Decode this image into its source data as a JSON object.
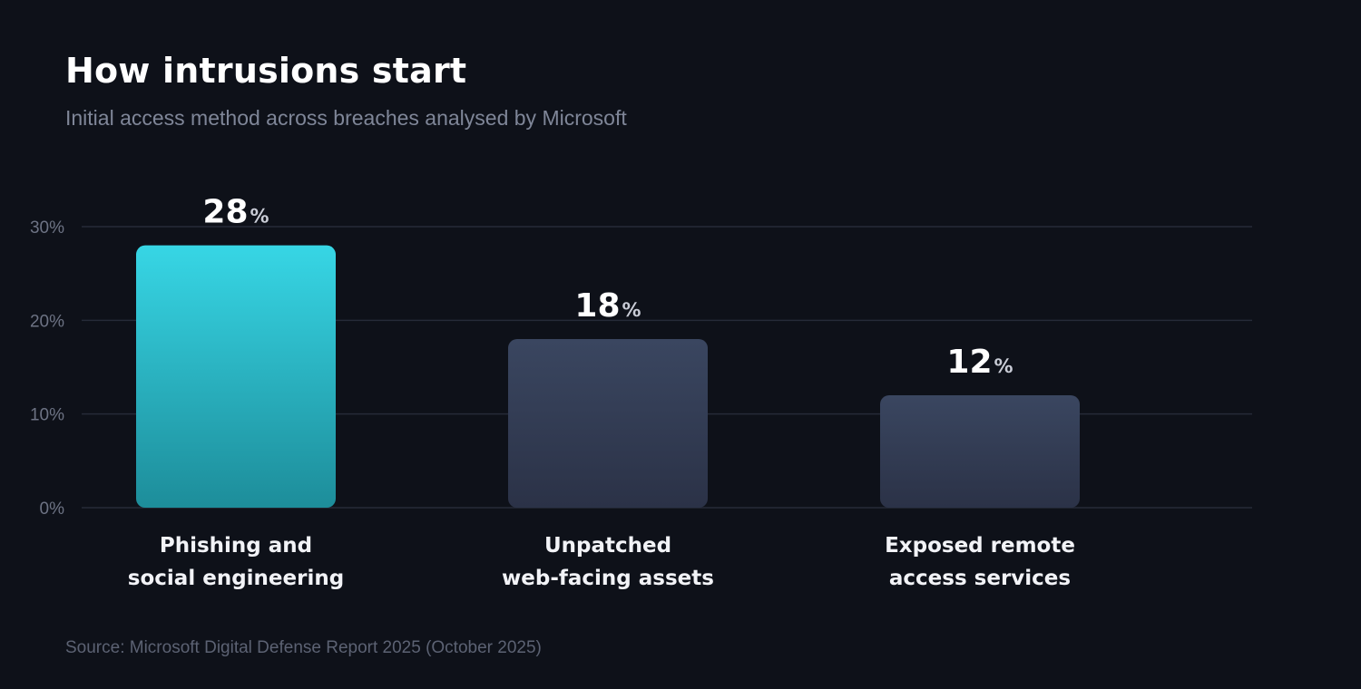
{
  "header": {
    "title": "How intrusions start",
    "subtitle": "Initial access method across breaches analysed by Microsoft"
  },
  "footer": {
    "source": "Source: Microsoft Digital Defense Report 2025 (October 2025)"
  },
  "colors": {
    "background": "#0e1119",
    "highlight_top": "#37d6e5",
    "highlight_bottom": "#1d8d9a",
    "muted_top": "#3a4660",
    "muted_bottom": "#2b3247",
    "gridline": "#262b38"
  },
  "chart_data": {
    "type": "bar",
    "categories": [
      [
        "Phishing and",
        "social engineering"
      ],
      [
        "Unpatched",
        "web-facing assets"
      ],
      [
        "Exposed remote",
        "access services"
      ]
    ],
    "values": [
      28,
      18,
      12
    ],
    "value_unit": "%",
    "highlighted": [
      true,
      false,
      false
    ],
    "ylim": [
      0,
      30
    ],
    "yticks": [
      0,
      10,
      20,
      30
    ],
    "ytick_labels": [
      "0%",
      "10%",
      "20%",
      "30%"
    ],
    "grid": true,
    "legend": "none"
  }
}
